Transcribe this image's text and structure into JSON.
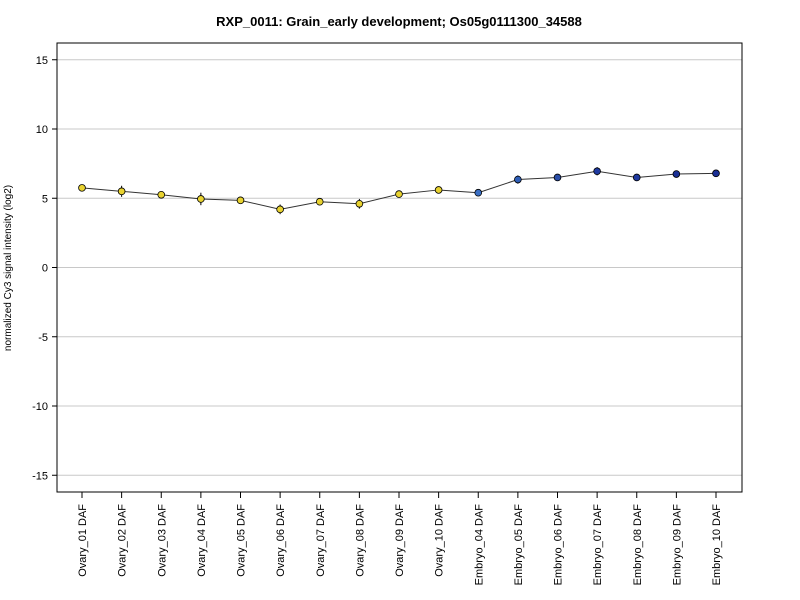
{
  "chart_data": {
    "type": "line",
    "title": "RXP_0011: Grain_early development; Os05g0111300_34588",
    "xlabel": "",
    "ylabel": "normalized Cy3 signal intensity (log2)",
    "ylim": [
      -16,
      16
    ],
    "yticks": [
      -15,
      -10,
      -5,
      0,
      5,
      10,
      15
    ],
    "grid": "horizontal",
    "categories": [
      "Ovary_01 DAF",
      "Ovary_02 DAF",
      "Ovary_03 DAF",
      "Ovary_04 DAF",
      "Ovary_05 DAF",
      "Ovary_06 DAF",
      "Ovary_07 DAF",
      "Ovary_08 DAF",
      "Ovary_09 DAF",
      "Ovary_10 DAF",
      "Embryo_04 DAF",
      "Embryo_05 DAF",
      "Embryo_06 DAF",
      "Embryo_07 DAF",
      "Embryo_08 DAF",
      "Embryo_09 DAF",
      "Embryo_10 DAF"
    ],
    "values": [
      5.75,
      5.5,
      5.25,
      4.95,
      4.85,
      4.2,
      4.75,
      4.6,
      5.3,
      5.6,
      5.4,
      6.35,
      6.5,
      6.95,
      6.5,
      6.75,
      6.8
    ],
    "errors": [
      0.15,
      0.4,
      0.2,
      0.45,
      0.2,
      0.35,
      0.2,
      0.35,
      0.15,
      0.15,
      0.15,
      0.3,
      0.15,
      0.3,
      0.15,
      0.1,
      0.1
    ],
    "point_colors": [
      "#e8d230",
      "#e8d230",
      "#e8d230",
      "#e8d230",
      "#e8d230",
      "#e8d230",
      "#e8d230",
      "#e8d230",
      "#e8d230",
      "#e8d230",
      "#3a6fc4",
      "#2f5fb8",
      "#2a4ea8",
      "#1f3aa0",
      "#1f3aa0",
      "#1a2f95",
      "#1a2f95"
    ],
    "line_color": "#333333"
  }
}
